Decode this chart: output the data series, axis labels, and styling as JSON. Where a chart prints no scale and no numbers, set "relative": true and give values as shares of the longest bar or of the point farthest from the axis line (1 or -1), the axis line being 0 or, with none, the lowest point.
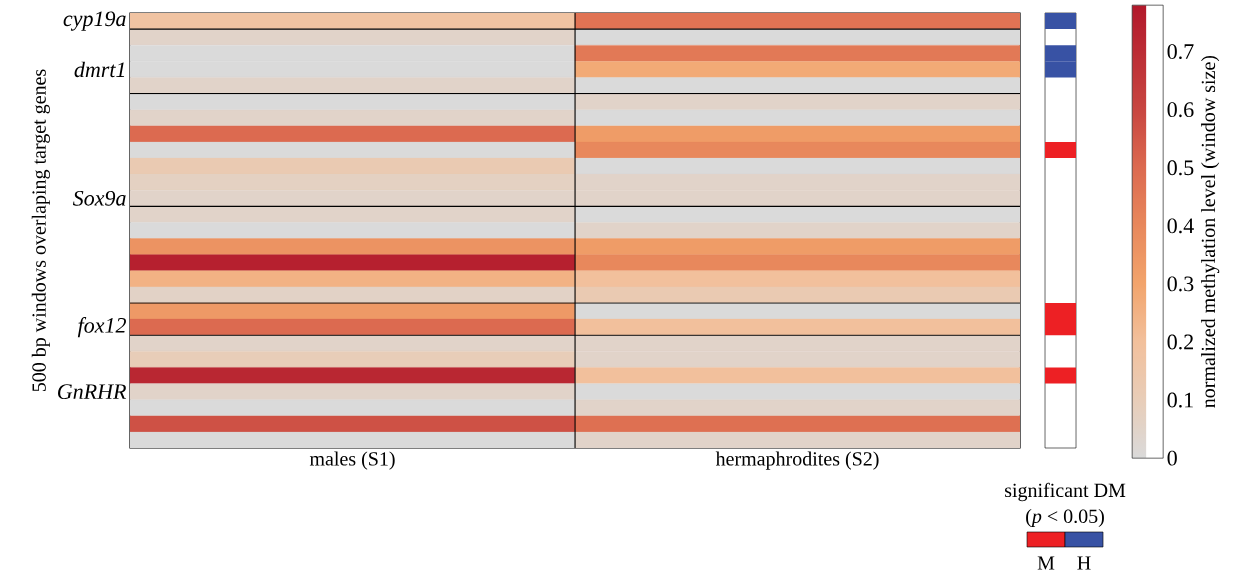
{
  "chart_data": [
    {
      "type": "heatmap",
      "ylabel": "500 bp windows overlaping target genes",
      "clabel": "normalized methylation level (window size)",
      "categories": [
        "males (S1)",
        "hermaphrodites (S2)"
      ],
      "y_categories": [
        "cyp19a",
        null,
        null,
        "dmrt1",
        null,
        null,
        null,
        null,
        null,
        null,
        null,
        "Sox9a",
        null,
        null,
        null,
        null,
        null,
        null,
        null,
        "fox12",
        null,
        null,
        null,
        "GnRHR",
        null,
        null,
        null
      ],
      "cells": [
        [
          0.18,
          0.47
        ],
        [
          0.05,
          0
        ],
        [
          0,
          0.45
        ],
        [
          0,
          0.28
        ],
        [
          0.05,
          0
        ],
        [
          0,
          0.05
        ],
        [
          0.05,
          0
        ],
        [
          0.5,
          0.33
        ],
        [
          0,
          0.4
        ],
        [
          0.12,
          0
        ],
        [
          0.07,
          0.05
        ],
        [
          0.05,
          0.05
        ],
        [
          0.05,
          0
        ],
        [
          0,
          0.05
        ],
        [
          0.36,
          0.33
        ],
        [
          0.75,
          0.4
        ],
        [
          0.25,
          0.2
        ],
        [
          0.06,
          0.12
        ],
        [
          0.34,
          0
        ],
        [
          0.5,
          0.2
        ],
        [
          0.05,
          0.05
        ],
        [
          0.1,
          0.05
        ],
        [
          0.72,
          0.2
        ],
        [
          0.05,
          0
        ],
        [
          0,
          0.05
        ],
        [
          0.57,
          0.48
        ],
        [
          0,
          0.05
        ]
      ],
      "clim": [
        0,
        0.78
      ],
      "cticks": [
        0,
        0.1,
        0.2,
        0.3,
        0.4,
        0.5,
        0.6,
        0.7
      ]
    },
    {
      "type": "bar",
      "orientation": "horizontal",
      "relative": true,
      "legend": "bottom",
      "title": "significant DM",
      "subtitle": "(*p* < 0.05)",
      "categories": [
        null,
        null,
        null,
        null,
        null,
        null,
        null,
        null,
        null,
        null,
        null,
        null,
        null,
        null,
        null,
        null,
        null,
        null,
        null,
        null,
        null,
        null,
        null,
        null,
        null,
        null,
        null
      ],
      "series": [
        {
          "name": "M",
          "color": "#ed2024",
          "values": [
            null,
            null,
            null,
            null,
            null,
            null,
            null,
            null,
            1,
            null,
            null,
            null,
            null,
            null,
            null,
            null,
            null,
            null,
            1,
            1,
            null,
            null,
            1,
            null,
            null,
            null,
            null
          ]
        },
        {
          "name": "H",
          "color": "#3852a4",
          "values": [
            1,
            null,
            1,
            1,
            null,
            null,
            null,
            null,
            null,
            null,
            null,
            null,
            null,
            null,
            null,
            null,
            null,
            null,
            null,
            null,
            null,
            null,
            null,
            null,
            null,
            null,
            null
          ]
        }
      ]
    }
  ]
}
